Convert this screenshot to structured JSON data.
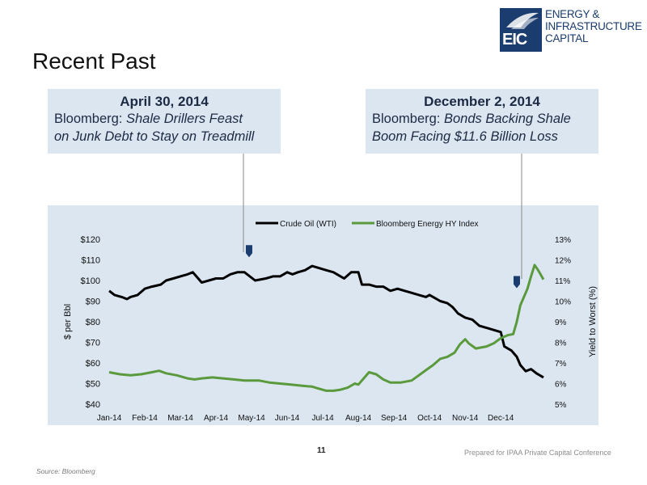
{
  "slide": {
    "title": "Recent Past",
    "page_number": "11",
    "prepared_for": "Prepared for IPAA Private Capital Conference",
    "source": "Source: Bloomberg"
  },
  "logo": {
    "mark": "EIC",
    "line1": "ENERGY &",
    "line2": "INFRASTRUCTURE",
    "line3": "CAPITAL",
    "color": "#1b3c6e"
  },
  "callouts": [
    {
      "date": "April 30, 2014",
      "source": "Bloomberg:",
      "headline_1": "Shale Drillers Feast",
      "headline_2": "on Junk Debt to Stay on Treadmill"
    },
    {
      "date": "December 2, 2014",
      "source": "Bloomberg:",
      "headline_1": "Bonds Backing Shale",
      "headline_2": "Boom Facing $11.6 Billion Loss"
    }
  ],
  "chart_data": {
    "type": "line",
    "x_tick_labels": [
      "Jan-14",
      "Feb-14",
      "Mar-14",
      "Apr-14",
      "May-14",
      "Jun-14",
      "Jul-14",
      "Aug-14",
      "Sep-14",
      "Oct-14",
      "Nov-14",
      "Dec-14"
    ],
    "ylabel_left": "$ per Bbl",
    "ylabel_right": "Yield to Worst (%)",
    "y_left_ticks": [
      "$40",
      "$50",
      "$60",
      "$70",
      "$80",
      "$90",
      "$100",
      "$110",
      "$120"
    ],
    "y_right_ticks": [
      "5%",
      "6%",
      "7%",
      "8%",
      "9%",
      "10%",
      "11%",
      "12%",
      "13%"
    ],
    "ylim_left": [
      40,
      120
    ],
    "ylim_right": [
      5,
      13
    ],
    "legend_position": "top",
    "grid": false,
    "series": [
      {
        "name": "Crude Oil (WTI)",
        "axis": "left",
        "color": "#000000",
        "points": [
          [
            0.0,
            95
          ],
          [
            0.15,
            93
          ],
          [
            0.35,
            92
          ],
          [
            0.5,
            91
          ],
          [
            0.6,
            92
          ],
          [
            0.8,
            93
          ],
          [
            1.0,
            96
          ],
          [
            1.2,
            97
          ],
          [
            1.45,
            98
          ],
          [
            1.6,
            100
          ],
          [
            1.8,
            101
          ],
          [
            2.0,
            102
          ],
          [
            2.2,
            103
          ],
          [
            2.35,
            104
          ],
          [
            2.45,
            102
          ],
          [
            2.6,
            99
          ],
          [
            2.8,
            100
          ],
          [
            3.0,
            101
          ],
          [
            3.2,
            101
          ],
          [
            3.4,
            103
          ],
          [
            3.6,
            104
          ],
          [
            3.8,
            104
          ],
          [
            3.95,
            102
          ],
          [
            4.1,
            100
          ],
          [
            4.4,
            101
          ],
          [
            4.6,
            102
          ],
          [
            4.8,
            102
          ],
          [
            5.0,
            104
          ],
          [
            5.15,
            103
          ],
          [
            5.3,
            104
          ],
          [
            5.5,
            105
          ],
          [
            5.7,
            107
          ],
          [
            5.9,
            106
          ],
          [
            6.1,
            105
          ],
          [
            6.3,
            104
          ],
          [
            6.5,
            102
          ],
          [
            6.6,
            101
          ],
          [
            6.8,
            104
          ],
          [
            7.0,
            104
          ],
          [
            7.1,
            98
          ],
          [
            7.3,
            98
          ],
          [
            7.5,
            97
          ],
          [
            7.7,
            97
          ],
          [
            7.9,
            95
          ],
          [
            8.1,
            96
          ],
          [
            8.3,
            95
          ],
          [
            8.5,
            94
          ],
          [
            8.7,
            93
          ],
          [
            8.9,
            92
          ],
          [
            9.0,
            93
          ],
          [
            9.1,
            92
          ],
          [
            9.3,
            90
          ],
          [
            9.5,
            89
          ],
          [
            9.65,
            87
          ],
          [
            9.8,
            84
          ],
          [
            10.0,
            82
          ],
          [
            10.2,
            81
          ],
          [
            10.4,
            78
          ],
          [
            10.6,
            77
          ],
          [
            10.8,
            76
          ],
          [
            11.0,
            75
          ],
          [
            11.1,
            68
          ],
          [
            11.3,
            66
          ],
          [
            11.45,
            63
          ],
          [
            11.55,
            59
          ],
          [
            11.7,
            56
          ],
          [
            11.85,
            57
          ],
          [
            12.0,
            55
          ],
          [
            12.2,
            53
          ]
        ]
      },
      {
        "name": "Bloomberg Energy HY Index",
        "axis": "right",
        "color": "#5a9a3c",
        "points": [
          [
            0.0,
            6.55
          ],
          [
            0.3,
            6.45
          ],
          [
            0.6,
            6.4
          ],
          [
            0.9,
            6.45
          ],
          [
            1.2,
            6.55
          ],
          [
            1.4,
            6.62
          ],
          [
            1.6,
            6.5
          ],
          [
            1.9,
            6.4
          ],
          [
            2.2,
            6.25
          ],
          [
            2.4,
            6.2
          ],
          [
            2.6,
            6.25
          ],
          [
            2.9,
            6.3
          ],
          [
            3.2,
            6.25
          ],
          [
            3.5,
            6.2
          ],
          [
            3.8,
            6.15
          ],
          [
            4.0,
            6.15
          ],
          [
            4.2,
            6.15
          ],
          [
            4.5,
            6.05
          ],
          [
            4.8,
            6.0
          ],
          [
            5.1,
            5.95
          ],
          [
            5.4,
            5.9
          ],
          [
            5.7,
            5.85
          ],
          [
            5.9,
            5.75
          ],
          [
            6.1,
            5.65
          ],
          [
            6.3,
            5.65
          ],
          [
            6.5,
            5.7
          ],
          [
            6.7,
            5.8
          ],
          [
            6.9,
            6.0
          ],
          [
            7.0,
            5.95
          ],
          [
            7.15,
            6.25
          ],
          [
            7.3,
            6.55
          ],
          [
            7.5,
            6.45
          ],
          [
            7.7,
            6.2
          ],
          [
            7.9,
            6.05
          ],
          [
            8.2,
            6.05
          ],
          [
            8.5,
            6.15
          ],
          [
            8.7,
            6.4
          ],
          [
            8.9,
            6.65
          ],
          [
            9.1,
            6.9
          ],
          [
            9.3,
            7.2
          ],
          [
            9.5,
            7.3
          ],
          [
            9.7,
            7.5
          ],
          [
            9.85,
            7.9
          ],
          [
            10.0,
            8.15
          ],
          [
            10.1,
            7.95
          ],
          [
            10.3,
            7.7
          ],
          [
            10.6,
            7.8
          ],
          [
            10.8,
            7.95
          ],
          [
            11.0,
            8.2
          ],
          [
            11.2,
            8.35
          ],
          [
            11.35,
            8.4
          ],
          [
            11.45,
            9.0
          ],
          [
            11.55,
            9.8
          ],
          [
            11.65,
            10.2
          ],
          [
            11.75,
            10.6
          ],
          [
            11.85,
            11.2
          ],
          [
            11.95,
            11.75
          ],
          [
            12.05,
            11.5
          ],
          [
            12.2,
            11.05
          ]
        ]
      }
    ],
    "markers": [
      {
        "axis": "left",
        "x": 3.93,
        "y": 114
      },
      {
        "axis": "right",
        "x": 11.45,
        "y": 10.9
      }
    ]
  }
}
